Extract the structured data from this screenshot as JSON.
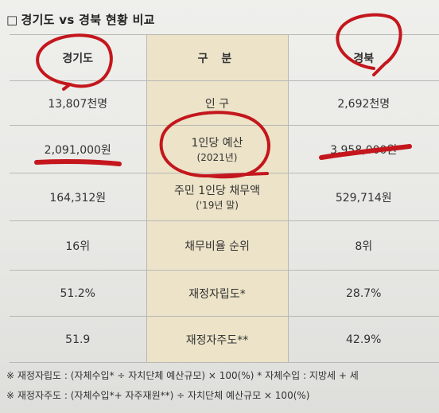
{
  "title": {
    "box": "□",
    "text": "경기도 vs 경북 현황 비교"
  },
  "table": {
    "headers": {
      "left": "경기도",
      "middle": "구 분",
      "right": "경북"
    },
    "rows": [
      {
        "left": "13,807천명",
        "middle": "인      구",
        "middle_sub": "",
        "right": "2,692천명"
      },
      {
        "left": "2,091,000원",
        "middle": "1인당 예산",
        "middle_sub": "(2021년)",
        "right": "3,958,000원"
      },
      {
        "left": "164,312원",
        "middle": "주민 1인당 채무액",
        "middle_sub": "('19년 말)",
        "right": "529,714원"
      },
      {
        "left": "16위",
        "middle": "채무비율 순위",
        "middle_sub": "",
        "right": "8위"
      },
      {
        "left": "51.2%",
        "middle": "재정자립도*",
        "middle_sub": "",
        "right": "28.7%"
      },
      {
        "left": "51.9",
        "middle": "재정자주도**",
        "middle_sub": "",
        "right": "42.9%"
      }
    ]
  },
  "notes": [
    "※ 재정자립도 : (자체수입* ÷ 자치단체 예산규모) × 100(%)   * 자체수입 : 지방세 + 세",
    "※ 재정자주도 : (자체수입*+ 자주재원**) ÷ 자치단체 예산규모 × 100(%)"
  ],
  "colors": {
    "annotation_red": "#c4161c",
    "middle_column": "#ece3c8"
  }
}
